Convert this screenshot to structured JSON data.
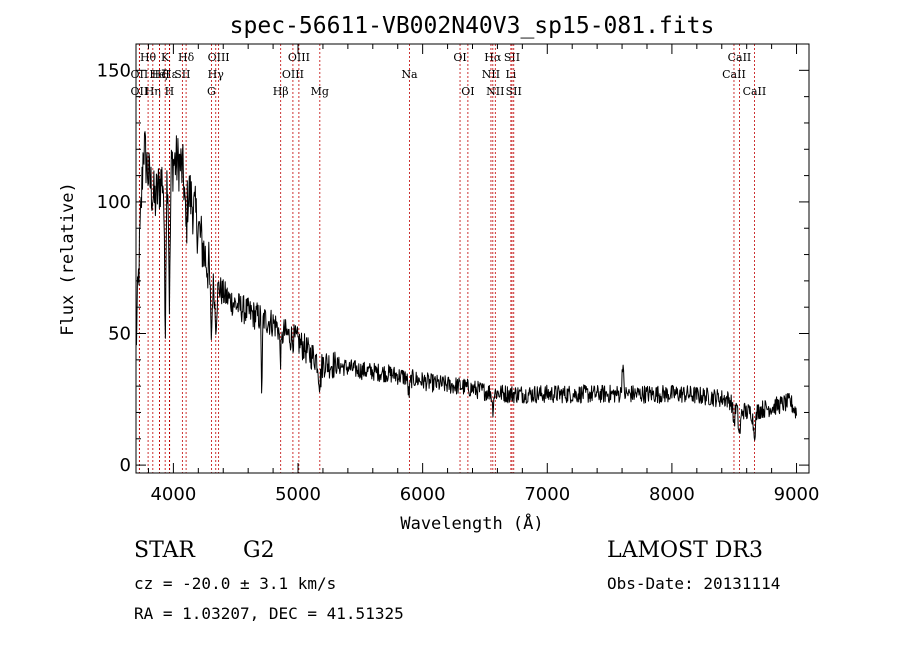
{
  "chart_data": {
    "type": "line",
    "title": "spec-56611-VB002N40V3_sp15-081.fits",
    "xlabel": "Wavelength (Å)",
    "ylabel": "Flux (relative)",
    "xlim": [
      3700,
      9100
    ],
    "ylim": [
      -3,
      160
    ],
    "xticks": [
      4000,
      5000,
      6000,
      7000,
      8000,
      9000
    ],
    "yticks": [
      0,
      50,
      100,
      150
    ],
    "continuum": [
      [
        3700,
        45
      ],
      [
        3760,
        122
      ],
      [
        3800,
        110
      ],
      [
        3850,
        100
      ],
      [
        3900,
        108
      ],
      [
        3950,
        112
      ],
      [
        4000,
        115
      ],
      [
        4050,
        115
      ],
      [
        4100,
        107
      ],
      [
        4150,
        100
      ],
      [
        4200,
        90
      ],
      [
        4250,
        80
      ],
      [
        4300,
        72
      ],
      [
        4400,
        65
      ],
      [
        4500,
        61
      ],
      [
        4600,
        58
      ],
      [
        4700,
        56
      ],
      [
        4800,
        54
      ],
      [
        4900,
        50
      ],
      [
        5000,
        47
      ],
      [
        5100,
        42
      ],
      [
        5200,
        39
      ],
      [
        5300,
        38
      ],
      [
        5500,
        36
      ],
      [
        5700,
        35
      ],
      [
        5900,
        33
      ],
      [
        6100,
        31
      ],
      [
        6300,
        30
      ],
      [
        6500,
        28
      ],
      [
        6700,
        27
      ],
      [
        6900,
        27
      ],
      [
        7100,
        27
      ],
      [
        7300,
        27
      ],
      [
        7500,
        27
      ],
      [
        7700,
        27
      ],
      [
        7900,
        27
      ],
      [
        8100,
        27
      ],
      [
        8300,
        26
      ],
      [
        8450,
        25
      ],
      [
        8600,
        20
      ],
      [
        8700,
        21
      ],
      [
        8800,
        22
      ],
      [
        8950,
        24
      ],
      [
        9000,
        20
      ]
    ],
    "absorption": [
      {
        "center": 3934,
        "depth": 55,
        "width": 6
      },
      {
        "center": 3969,
        "depth": 50,
        "width": 6
      },
      {
        "center": 4101,
        "depth": 18,
        "width": 8
      },
      {
        "center": 4304,
        "depth": 22,
        "width": 7
      },
      {
        "center": 4340,
        "depth": 15,
        "width": 8
      },
      {
        "center": 4710,
        "depth": 30,
        "width": 4
      },
      {
        "center": 4861,
        "depth": 10,
        "width": 8
      },
      {
        "center": 5175,
        "depth": 8,
        "width": 10
      },
      {
        "center": 5890,
        "depth": 6,
        "width": 8
      },
      {
        "center": 6563,
        "depth": 6,
        "width": 6
      },
      {
        "center": 8498,
        "depth": 7,
        "width": 8
      },
      {
        "center": 8542,
        "depth": 10,
        "width": 10
      },
      {
        "center": 8662,
        "depth": 8,
        "width": 10
      }
    ],
    "emission": [
      {
        "center": 7605,
        "height": 12,
        "width": 6
      }
    ],
    "noise_amplitude": 3.5,
    "lines": [
      {
        "label": "Hθ",
        "wave": 3797,
        "row": 1
      },
      {
        "label": "OII",
        "wave": 3727,
        "row": 2
      },
      {
        "label": "OII",
        "wave": 3727,
        "row": 3
      },
      {
        "label": "K",
        "wave": 3934,
        "row": 1
      },
      {
        "label": "Hε",
        "wave": 3970,
        "row": 2
      },
      {
        "label": "Hη",
        "wave": 3835,
        "row": 3
      },
      {
        "label": "Hζ",
        "wave": 3889,
        "row": 2
      },
      {
        "label": "H",
        "wave": 3968,
        "row": 3
      },
      {
        "label": "HeI",
        "wave": 3889,
        "row": 2
      },
      {
        "label": "SII",
        "wave": 4072,
        "row": 2
      },
      {
        "label": "Hδ",
        "wave": 4102,
        "row": 1
      },
      {
        "label": "OIII",
        "wave": 4363,
        "row": 1
      },
      {
        "label": "Hγ",
        "wave": 4340,
        "row": 2
      },
      {
        "label": "G",
        "wave": 4305,
        "row": 3
      },
      {
        "label": "Hβ",
        "wave": 4861,
        "row": 3
      },
      {
        "label": "OIII",
        "wave": 5007,
        "row": 1
      },
      {
        "label": "OIII",
        "wave": 4959,
        "row": 2
      },
      {
        "label": "Mg",
        "wave": 5175,
        "row": 3
      },
      {
        "label": "Na",
        "wave": 5894,
        "row": 2
      },
      {
        "label": "OI",
        "wave": 6300,
        "row": 1
      },
      {
        "label": "OI",
        "wave": 6363,
        "row": 3
      },
      {
        "label": "Hα",
        "wave": 6563,
        "row": 1
      },
      {
        "label": "NII",
        "wave": 6548,
        "row": 2
      },
      {
        "label": "NII",
        "wave": 6583,
        "row": 3
      },
      {
        "label": "SII",
        "wave": 6717,
        "row": 1
      },
      {
        "label": "Li",
        "wave": 6708,
        "row": 2
      },
      {
        "label": "SII",
        "wave": 6731,
        "row": 3
      },
      {
        "label": "CaII",
        "wave": 8542,
        "row": 1
      },
      {
        "label": "CaII",
        "wave": 8498,
        "row": 2
      },
      {
        "label": "CaII",
        "wave": 8662,
        "row": 3
      }
    ],
    "line_color": "#c00000",
    "spectrum_color": "#000000"
  },
  "info": {
    "class": "STAR",
    "subclass": "G2",
    "survey": "LAMOST DR3",
    "cz": "cz = -20.0 ± 3.1 km/s",
    "obs_date": "Obs-Date: 20131114",
    "radec": "RA =   1.03207, DEC =  41.51325"
  }
}
